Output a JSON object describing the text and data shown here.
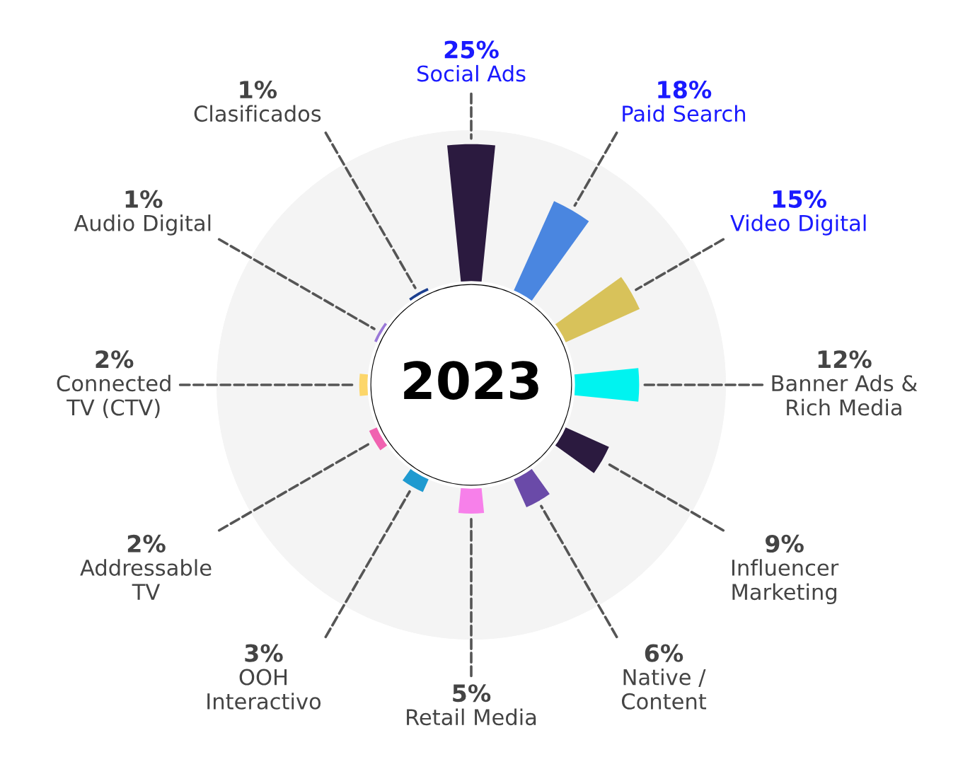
{
  "chart_data": {
    "type": "other",
    "title": "2023",
    "categories": [
      "Social Ads",
      "Paid Search",
      "Video Digital",
      "Banner Ads &\nRich Media",
      "Influencer\nMarketing",
      "Native /\nContent",
      "Retail Media",
      "OOH\nInteractivo",
      "Addressable\nTV",
      "Connected\nTV (CTV)",
      "Audio Digital",
      "Clasificados"
    ],
    "values": [
      25,
      18,
      15,
      12,
      9,
      6,
      5,
      3,
      2,
      2,
      1,
      1
    ],
    "value_labels": [
      "25%",
      "18%",
      "15%",
      "12%",
      "9%",
      "6%",
      "5%",
      "3%",
      "2%",
      "2%",
      "1%",
      "1%"
    ],
    "colors": [
      "#2b1a3f",
      "#4a86e0",
      "#d8c25a",
      "#00f3f0",
      "#2b1a3f",
      "#6a4aa8",
      "#f780ea",
      "#1f9ad0",
      "#f062b0",
      "#fcd66a",
      "#9a78d8",
      "#1c3f8f"
    ]
  }
}
